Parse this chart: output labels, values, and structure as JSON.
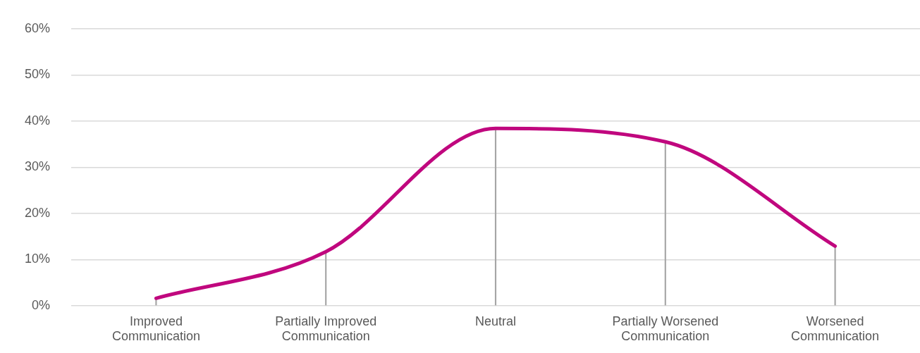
{
  "chart_data": {
    "type": "line",
    "categories": [
      "Improved Communication",
      "Partially Improved Communication",
      "Neutral",
      "Partially Worsened Communication",
      "Worsened Communication"
    ],
    "series": [
      {
        "color": "#c0077e",
        "values": [
          1.6,
          11.7,
          38.4,
          35.5,
          12.9
        ]
      },
      {
        "type": "bar",
        "color": "#a6a6a6",
        "values": [
          1.6,
          11.7,
          38.4,
          35.5,
          12.9
        ]
      }
    ],
    "ylim": [
      0,
      60
    ],
    "yticks": [
      {
        "value": 0,
        "label": "0%"
      },
      {
        "value": 10,
        "label": "10%"
      },
      {
        "value": 20,
        "label": "20%"
      },
      {
        "value": 30,
        "label": "30%"
      },
      {
        "value": 40,
        "label": "40%"
      },
      {
        "value": 50,
        "label": "50%"
      },
      {
        "value": 60,
        "label": "60%"
      }
    ],
    "grid": "y",
    "legend": false,
    "marker": "none",
    "line_style": "solid"
  }
}
